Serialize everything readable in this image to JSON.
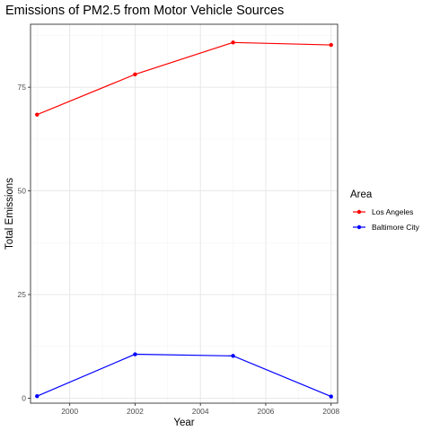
{
  "chart_data": {
    "type": "line",
    "title": "Emissions of PM2.5 from Motor Vehicle Sources",
    "xlabel": "Year",
    "ylabel": "Total Emissions",
    "x": [
      1999,
      2002,
      2005,
      2008
    ],
    "xlim": [
      1998.8,
      2008.2
    ],
    "ylim": [
      -1.2,
      90.2
    ],
    "xticks": [
      2000,
      2002,
      2004,
      2006,
      2008
    ],
    "yticks": [
      0,
      25,
      50,
      75
    ],
    "grid": true,
    "legend": {
      "title": "Area",
      "placement": "right"
    },
    "series": [
      {
        "name": "Los Angeles",
        "color": "#ff0000",
        "values": [
          68.4,
          78.1,
          85.8,
          85.2
        ]
      },
      {
        "name": "Baltimore City",
        "color": "#0000ff",
        "values": [
          0.5,
          10.6,
          10.2,
          0.4
        ]
      }
    ]
  }
}
